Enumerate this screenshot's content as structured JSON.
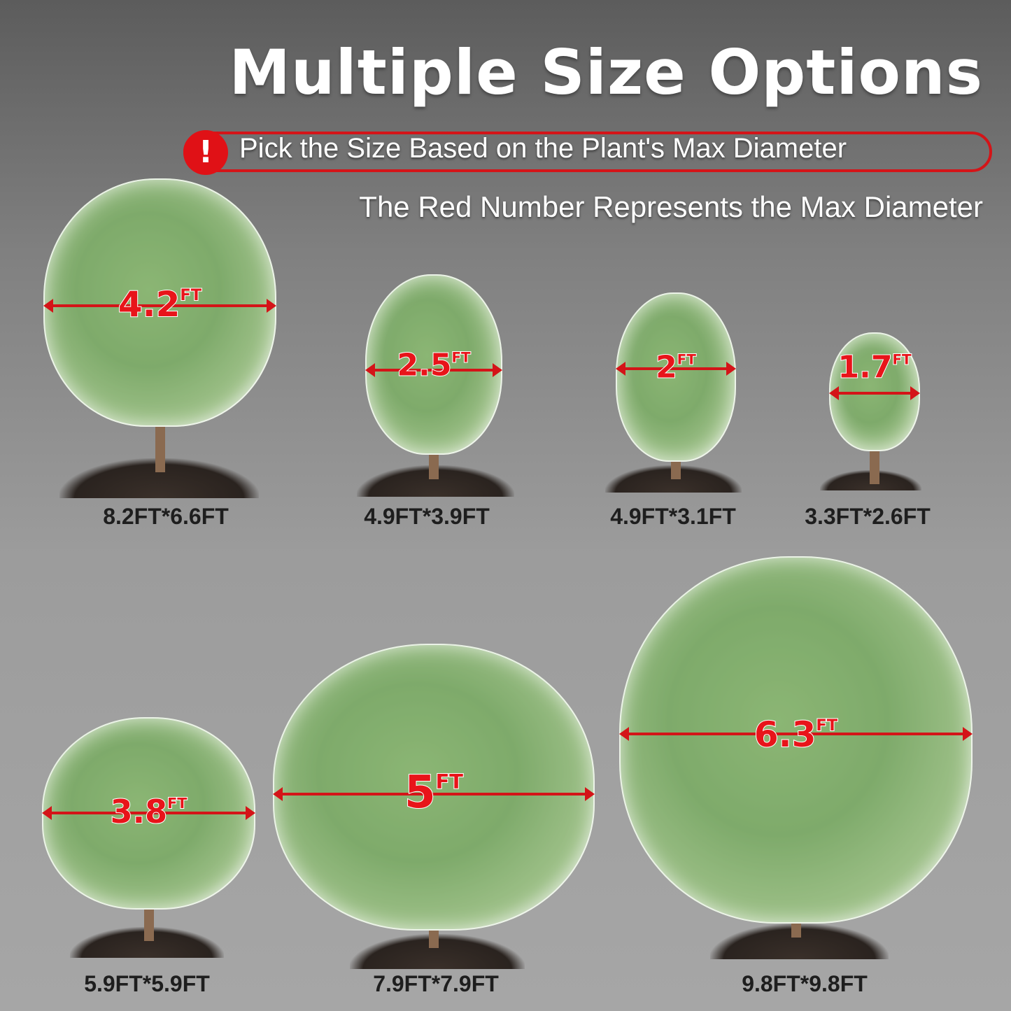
{
  "title": "Multiple Size Options",
  "notice": {
    "icon": "exclamation-icon",
    "text": "Pick the Size Based on the Plant's Max Diameter",
    "color": "#e01116"
  },
  "subtitle": "The Red Number Represents the Max Diameter",
  "products": [
    {
      "diameter": "4.2",
      "unit": "FT",
      "size": "8.2FT*6.6FT"
    },
    {
      "diameter": "2.5",
      "unit": "FT",
      "size": "4.9FT*3.9FT"
    },
    {
      "diameter": "2",
      "unit": "FT",
      "size": "4.9FT*3.1FT"
    },
    {
      "diameter": "1.7",
      "unit": "FT",
      "size": "3.3FT*2.6FT"
    },
    {
      "diameter": "3.8",
      "unit": "FT",
      "size": "5.9FT*5.9FT"
    },
    {
      "diameter": "5",
      "unit": "FT",
      "size": "7.9FT*7.9FT"
    },
    {
      "diameter": "6.3",
      "unit": "FT",
      "size": "9.8FT*9.8FT"
    }
  ]
}
